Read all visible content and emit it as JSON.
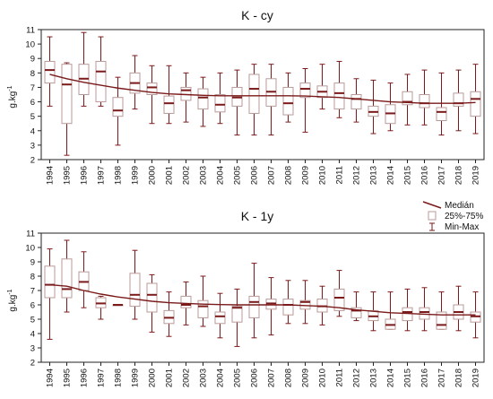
{
  "colors": {
    "median": "#7a1a1a",
    "whisker": "#7a1a1a",
    "box_stroke": "#b99a9a",
    "box_fill": "#ffffff",
    "trend": "#7a1a1a",
    "axis": "#222222"
  },
  "legend": {
    "median_label": "Medián",
    "box_label": "25%-75%",
    "range_label": "Min-Max"
  },
  "chart_data": [
    {
      "type": "box",
      "title": "K - cy",
      "ylabel": "g.kg",
      "ylabel_sup": "-1",
      "ylim": [
        2,
        11
      ],
      "yticks": [
        2,
        3,
        4,
        5,
        6,
        7,
        8,
        9,
        10,
        11
      ],
      "categories": [
        "1994",
        "1995",
        "1996",
        "1997",
        "1998",
        "1999",
        "2000",
        "2001",
        "2002",
        "2003",
        "2004",
        "2005",
        "2006",
        "2007",
        "2008",
        "2009",
        "2010",
        "2011",
        "2012",
        "2013",
        "2014",
        "2015",
        "2016",
        "2017",
        "2018",
        "2019"
      ],
      "min": [
        5.7,
        2.3,
        5.7,
        5.7,
        3.0,
        5.5,
        4.5,
        4.5,
        4.6,
        4.3,
        4.5,
        3.7,
        3.7,
        3.7,
        4.6,
        3.9,
        5.5,
        4.9,
        4.6,
        3.8,
        4.0,
        4.4,
        4.4,
        3.7,
        4.0,
        3.8
      ],
      "q1": [
        7.3,
        4.5,
        6.5,
        6.0,
        5.0,
        6.6,
        6.5,
        5.2,
        6.1,
        5.5,
        5.3,
        5.7,
        5.2,
        5.7,
        5.1,
        6.3,
        6.3,
        5.5,
        5.5,
        5.0,
        4.5,
        5.8,
        5.6,
        4.7,
        5.7,
        5.0
      ],
      "median": [
        8.2,
        7.2,
        7.6,
        8.1,
        5.4,
        7.3,
        7.0,
        5.9,
        6.8,
        6.3,
        5.8,
        6.3,
        6.9,
        6.7,
        5.9,
        6.9,
        6.7,
        6.6,
        6.2,
        5.3,
        5.2,
        6.0,
        5.9,
        5.3,
        5.9,
        6.2
      ],
      "q3": [
        8.8,
        8.6,
        8.6,
        8.8,
        6.3,
        8.0,
        7.3,
        6.4,
        7.0,
        6.9,
        6.5,
        7.0,
        7.9,
        7.6,
        7.0,
        7.3,
        7.1,
        7.3,
        6.5,
        5.7,
        5.8,
        6.7,
        6.5,
        5.6,
        6.6,
        6.7
      ],
      "max": [
        10.5,
        8.7,
        10.8,
        10.5,
        7.7,
        9.2,
        8.5,
        8.5,
        8.0,
        7.7,
        8.0,
        8.2,
        8.6,
        8.6,
        8.0,
        8.3,
        8.6,
        8.8,
        7.6,
        7.5,
        7.3,
        7.9,
        8.2,
        8.0,
        8.2,
        8.6
      ],
      "trend": [
        7.9,
        7.6,
        7.35,
        7.15,
        6.95,
        6.8,
        6.65,
        6.55,
        6.5,
        6.45,
        6.42,
        6.42,
        6.42,
        6.42,
        6.42,
        6.4,
        6.35,
        6.3,
        6.2,
        6.1,
        6.0,
        5.95,
        5.9,
        5.9,
        5.9,
        5.95
      ]
    },
    {
      "type": "box",
      "title": "K - 1y",
      "ylabel": "g.kg",
      "ylabel_sup": "-1",
      "ylim": [
        2,
        11
      ],
      "yticks": [
        2,
        3,
        4,
        5,
        6,
        7,
        8,
        9,
        10,
        11
      ],
      "categories": [
        "1994",
        "1995",
        "1996",
        "1997",
        "1998",
        "1999",
        "2000",
        "2001",
        "2002",
        "2003",
        "2004",
        "2005",
        "2006",
        "2007",
        "2008",
        "2009",
        "2010",
        "2011",
        "2012",
        "2013",
        "2014",
        "2015",
        "2016",
        "2017",
        "2018",
        "2019"
      ],
      "min": [
        3.6,
        5.5,
        5.8,
        5.0,
        6.0,
        5.0,
        4.1,
        3.8,
        4.6,
        4.5,
        3.7,
        3.1,
        3.7,
        3.9,
        4.7,
        4.7,
        4.6,
        5.2,
        4.9,
        4.2,
        4.3,
        4.2,
        4.2,
        4.3,
        4.2,
        3.7
      ],
      "q1": [
        6.5,
        6.5,
        7.0,
        5.8,
        6.0,
        5.9,
        5.5,
        4.7,
        5.8,
        5.1,
        4.7,
        4.8,
        5.1,
        5.7,
        5.3,
        5.7,
        5.5,
        5.6,
        5.1,
        4.9,
        4.3,
        4.9,
        5.0,
        4.3,
        5.0,
        4.8
      ],
      "median": [
        7.4,
        7.1,
        7.6,
        6.1,
        6.0,
        6.7,
        6.7,
        5.1,
        6.0,
        5.9,
        5.2,
        5.8,
        6.2,
        6.1,
        6.0,
        6.2,
        5.9,
        6.5,
        5.6,
        5.2,
        4.6,
        5.5,
        5.5,
        4.6,
        5.5,
        5.2
      ],
      "q3": [
        8.7,
        9.2,
        8.3,
        6.5,
        6.0,
        8.2,
        7.5,
        5.6,
        6.6,
        6.3,
        5.5,
        5.9,
        6.6,
        6.4,
        6.4,
        6.3,
        6.4,
        7.1,
        5.8,
        5.6,
        5.0,
        5.8,
        5.8,
        5.5,
        6.0,
        5.5
      ],
      "max": [
        9.9,
        10.5,
        9.7,
        6.6,
        6.0,
        9.8,
        8.1,
        6.9,
        7.6,
        8.0,
        6.8,
        7.1,
        8.9,
        7.9,
        7.7,
        7.7,
        7.3,
        8.4,
        6.9,
        6.9,
        6.9,
        7.1,
        7.2,
        6.9,
        7.3,
        6.9
      ],
      "trend": [
        7.4,
        7.3,
        7.0,
        6.75,
        6.55,
        6.4,
        6.25,
        6.15,
        6.1,
        6.05,
        6.02,
        6.0,
        6.0,
        6.0,
        6.0,
        5.95,
        5.9,
        5.8,
        5.65,
        5.55,
        5.45,
        5.4,
        5.35,
        5.3,
        5.3,
        5.3
      ]
    }
  ]
}
